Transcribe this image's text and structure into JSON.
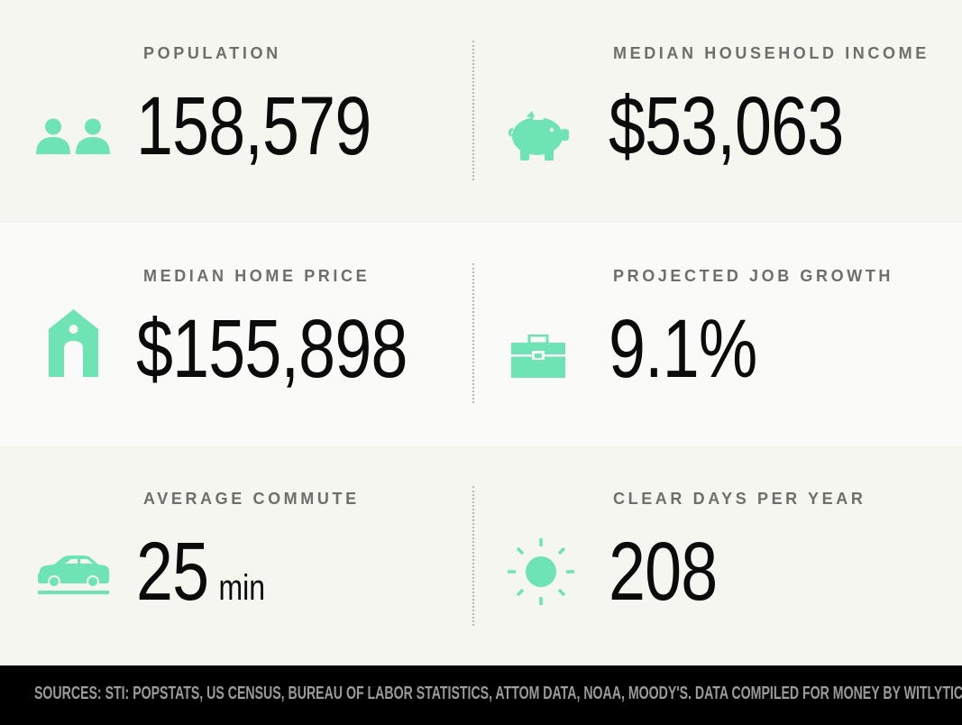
{
  "colors": {
    "accent": "#6ee3b4",
    "background": "#f5f6ef",
    "footer": "#000000"
  },
  "stats": [
    {
      "label": "POPULATION",
      "value": "158,579",
      "icon": "people-icon"
    },
    {
      "label": "MEDIAN HOUSEHOLD INCOME",
      "value": "$53,063",
      "icon": "piggy-bank-icon"
    },
    {
      "label": "MEDIAN HOME PRICE",
      "value": "$155,898",
      "icon": "house-icon"
    },
    {
      "label": "PROJECTED JOB GROWTH",
      "value": "9.1%",
      "icon": "briefcase-icon"
    },
    {
      "label": "AVERAGE COMMUTE",
      "value": "25",
      "unit": "min",
      "icon": "car-icon"
    },
    {
      "label": "CLEAR DAYS PER YEAR",
      "value": "208",
      "icon": "sun-icon"
    }
  ],
  "footer": {
    "sources": "SOURCES: STI: POPSTATS, US CENSUS, BUREAU OF LABOR STATISTICS, ATTOM DATA, NOAA, MOODY'S. DATA COMPILED FOR MONEY BY WITLYTIC."
  }
}
